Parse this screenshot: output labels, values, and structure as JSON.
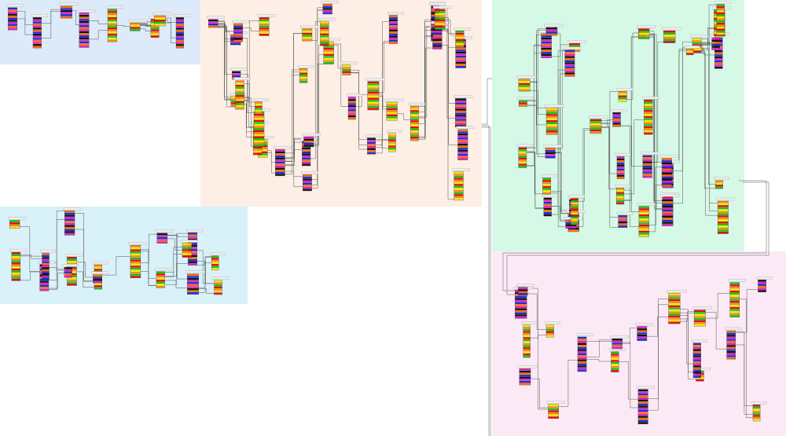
{
  "groups": [
    {
      "color": "#dceaf9"
    },
    {
      "color": "#fdefe5"
    },
    {
      "color": "#d9f1f8"
    },
    {
      "color": "#d6f8e7"
    },
    {
      "color": "#fbeaf6"
    }
  ],
  "palette": [
    "#ff6a00",
    "#18c21a",
    "#e020c8",
    "#f5e600",
    "#1a2fd8",
    "#e01010",
    "#111111",
    "#f08a20"
  ]
}
